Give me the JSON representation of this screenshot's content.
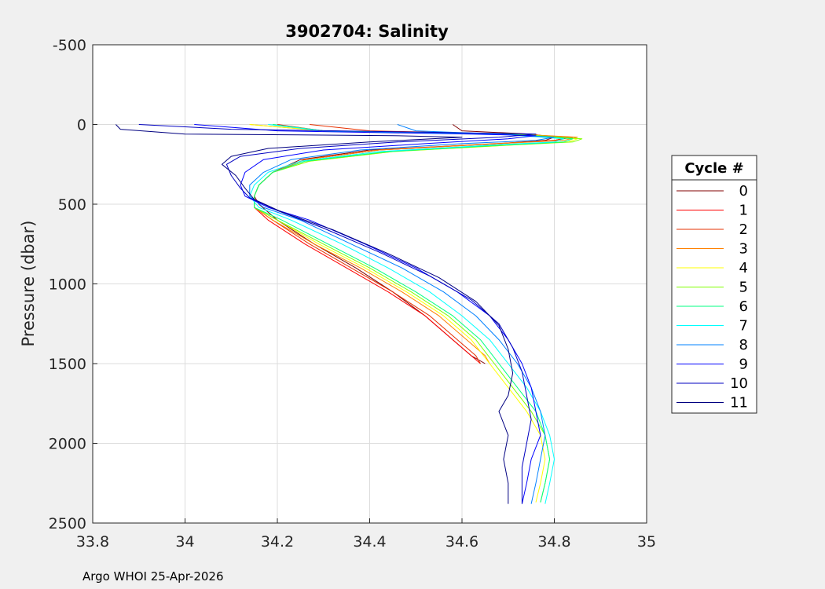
{
  "chart_data": {
    "type": "line",
    "title": "3902704:  Salinity",
    "xlabel": "",
    "ylabel": "Pressure (dbar)",
    "xlim": [
      33.8,
      35
    ],
    "ylim": [
      -500,
      2500
    ],
    "y_reversed": true,
    "grid": true,
    "xticks": [
      "33.8",
      "34",
      "34.2",
      "34.4",
      "34.6",
      "34.8",
      "35"
    ],
    "yticks": [
      "-500",
      "0",
      "500",
      "1000",
      "1500",
      "2000",
      "2500"
    ],
    "xtick_values": [
      33.8,
      34.0,
      34.2,
      34.4,
      34.6,
      34.8,
      35.0
    ],
    "ytick_values": [
      -500,
      0,
      500,
      1000,
      1500,
      2000,
      2500
    ],
    "legend": {
      "title": "Cycle #",
      "placement": "right"
    },
    "series": [
      {
        "name": "0",
        "color": "#800000",
        "points": [
          [
            34.58,
            0
          ],
          [
            34.6,
            40
          ],
          [
            34.75,
            60
          ],
          [
            34.8,
            80
          ],
          [
            34.78,
            100
          ],
          [
            34.68,
            120
          ],
          [
            34.4,
            160
          ],
          [
            34.25,
            220
          ],
          [
            34.19,
            300
          ],
          [
            34.16,
            380
          ],
          [
            34.15,
            450
          ],
          [
            34.16,
            500
          ],
          [
            34.2,
            600
          ],
          [
            34.28,
            750
          ],
          [
            34.37,
            900
          ],
          [
            34.45,
            1050
          ],
          [
            34.52,
            1200
          ],
          [
            34.58,
            1350
          ],
          [
            34.62,
            1450
          ],
          [
            34.65,
            1500
          ]
        ]
      },
      {
        "name": "1",
        "color": "#ff0000",
        "points": [
          [
            34.2,
            0
          ],
          [
            34.3,
            40
          ],
          [
            34.7,
            60
          ],
          [
            34.83,
            80
          ],
          [
            34.8,
            100
          ],
          [
            34.68,
            120
          ],
          [
            34.42,
            160
          ],
          [
            34.26,
            220
          ],
          [
            34.19,
            300
          ],
          [
            34.16,
            380
          ],
          [
            34.15,
            450
          ],
          [
            34.15,
            520
          ],
          [
            34.18,
            600
          ],
          [
            34.26,
            750
          ],
          [
            34.35,
            900
          ],
          [
            34.44,
            1050
          ],
          [
            34.52,
            1200
          ],
          [
            34.58,
            1350
          ],
          [
            34.62,
            1450
          ],
          [
            34.64,
            1500
          ]
        ]
      },
      {
        "name": "2",
        "color": "#e63000",
        "points": [
          [
            34.27,
            0
          ],
          [
            34.4,
            40
          ],
          [
            34.72,
            60
          ],
          [
            34.84,
            80
          ],
          [
            34.8,
            100
          ],
          [
            34.67,
            120
          ],
          [
            34.42,
            160
          ],
          [
            34.26,
            220
          ],
          [
            34.19,
            300
          ],
          [
            34.16,
            380
          ],
          [
            34.15,
            450
          ],
          [
            34.15,
            520
          ],
          [
            34.19,
            600
          ],
          [
            34.27,
            750
          ],
          [
            34.36,
            900
          ],
          [
            34.45,
            1050
          ],
          [
            34.53,
            1200
          ],
          [
            34.59,
            1350
          ],
          [
            34.63,
            1450
          ],
          [
            34.64,
            1500
          ]
        ]
      },
      {
        "name": "3",
        "color": "#ff8000",
        "points": [
          [
            34.14,
            0
          ],
          [
            34.3,
            40
          ],
          [
            34.72,
            60
          ],
          [
            34.85,
            80
          ],
          [
            34.82,
            100
          ],
          [
            34.68,
            120
          ],
          [
            34.42,
            160
          ],
          [
            34.26,
            220
          ],
          [
            34.19,
            300
          ],
          [
            34.16,
            380
          ],
          [
            34.15,
            450
          ],
          [
            34.15,
            520
          ],
          [
            34.19,
            600
          ],
          [
            34.28,
            750
          ],
          [
            34.38,
            900
          ],
          [
            34.47,
            1050
          ],
          [
            34.55,
            1200
          ],
          [
            34.61,
            1350
          ],
          [
            34.65,
            1450
          ],
          [
            34.66,
            1500
          ]
        ]
      },
      {
        "name": "4",
        "color": "#ffff00",
        "points": [
          [
            34.14,
            0
          ],
          [
            34.3,
            40
          ],
          [
            34.72,
            60
          ],
          [
            34.85,
            90
          ],
          [
            34.83,
            110
          ],
          [
            34.7,
            130
          ],
          [
            34.45,
            170
          ],
          [
            34.27,
            230
          ],
          [
            34.19,
            300
          ],
          [
            34.16,
            380
          ],
          [
            34.15,
            450
          ],
          [
            34.15,
            520
          ],
          [
            34.2,
            600
          ],
          [
            34.29,
            750
          ],
          [
            34.39,
            900
          ],
          [
            34.48,
            1050
          ],
          [
            34.56,
            1200
          ],
          [
            34.62,
            1350
          ],
          [
            34.66,
            1500
          ],
          [
            34.7,
            1650
          ],
          [
            34.74,
            1800
          ],
          [
            34.77,
            1950
          ],
          [
            34.78,
            2100
          ],
          [
            34.77,
            2250
          ],
          [
            34.76,
            2370
          ]
        ]
      },
      {
        "name": "5",
        "color": "#80ff00",
        "points": [
          [
            34.19,
            0
          ],
          [
            34.3,
            40
          ],
          [
            34.72,
            60
          ],
          [
            34.86,
            90
          ],
          [
            34.84,
            110
          ],
          [
            34.7,
            130
          ],
          [
            34.45,
            170
          ],
          [
            34.27,
            230
          ],
          [
            34.19,
            300
          ],
          [
            34.16,
            380
          ],
          [
            34.15,
            450
          ],
          [
            34.15,
            520
          ],
          [
            34.2,
            600
          ],
          [
            34.3,
            750
          ],
          [
            34.4,
            900
          ],
          [
            34.49,
            1050
          ],
          [
            34.57,
            1200
          ],
          [
            34.63,
            1350
          ],
          [
            34.67,
            1500
          ],
          [
            34.71,
            1650
          ],
          [
            34.75,
            1800
          ],
          [
            34.78,
            1950
          ],
          [
            34.79,
            2100
          ],
          [
            34.78,
            2250
          ],
          [
            34.77,
            2370
          ]
        ]
      },
      {
        "name": "6",
        "color": "#00ff80",
        "points": [
          [
            34.19,
            0
          ],
          [
            34.3,
            40
          ],
          [
            34.7,
            60
          ],
          [
            34.84,
            90
          ],
          [
            34.82,
            110
          ],
          [
            34.68,
            130
          ],
          [
            34.44,
            170
          ],
          [
            34.26,
            230
          ],
          [
            34.19,
            300
          ],
          [
            34.16,
            380
          ],
          [
            34.15,
            450
          ],
          [
            34.15,
            520
          ],
          [
            34.21,
            600
          ],
          [
            34.31,
            750
          ],
          [
            34.41,
            900
          ],
          [
            34.5,
            1050
          ],
          [
            34.58,
            1200
          ],
          [
            34.64,
            1350
          ],
          [
            34.68,
            1500
          ],
          [
            34.72,
            1650
          ],
          [
            34.76,
            1800
          ],
          [
            34.78,
            1950
          ],
          [
            34.79,
            2100
          ],
          [
            34.78,
            2250
          ],
          [
            34.77,
            2370
          ]
        ]
      },
      {
        "name": "7",
        "color": "#00ffff",
        "points": [
          [
            34.18,
            0
          ],
          [
            34.3,
            40
          ],
          [
            34.68,
            60
          ],
          [
            34.82,
            90
          ],
          [
            34.8,
            110
          ],
          [
            34.66,
            130
          ],
          [
            34.42,
            170
          ],
          [
            34.25,
            230
          ],
          [
            34.18,
            300
          ],
          [
            34.15,
            380
          ],
          [
            34.14,
            450
          ],
          [
            34.16,
            520
          ],
          [
            34.23,
            600
          ],
          [
            34.34,
            750
          ],
          [
            34.44,
            900
          ],
          [
            34.53,
            1050
          ],
          [
            34.6,
            1200
          ],
          [
            34.66,
            1350
          ],
          [
            34.7,
            1500
          ],
          [
            34.74,
            1650
          ],
          [
            34.77,
            1800
          ],
          [
            34.79,
            1950
          ],
          [
            34.8,
            2100
          ],
          [
            34.79,
            2250
          ],
          [
            34.78,
            2380
          ]
        ]
      },
      {
        "name": "8",
        "color": "#0080ff",
        "points": [
          [
            34.46,
            0
          ],
          [
            34.5,
            40
          ],
          [
            34.68,
            60
          ],
          [
            34.8,
            80
          ],
          [
            34.76,
            100
          ],
          [
            34.6,
            120
          ],
          [
            34.38,
            160
          ],
          [
            34.23,
            220
          ],
          [
            34.17,
            300
          ],
          [
            34.14,
            380
          ],
          [
            34.14,
            450
          ],
          [
            34.17,
            520
          ],
          [
            34.25,
            600
          ],
          [
            34.36,
            750
          ],
          [
            34.47,
            900
          ],
          [
            34.56,
            1050
          ],
          [
            34.63,
            1200
          ],
          [
            34.68,
            1350
          ],
          [
            34.72,
            1500
          ],
          [
            34.75,
            1650
          ],
          [
            34.77,
            1800
          ],
          [
            34.78,
            1950
          ],
          [
            34.77,
            2100
          ],
          [
            34.76,
            2250
          ],
          [
            34.75,
            2380
          ]
        ]
      },
      {
        "name": "9",
        "color": "#0000ff",
        "points": [
          [
            34.02,
            0
          ],
          [
            34.2,
            40
          ],
          [
            34.62,
            60
          ],
          [
            34.76,
            70
          ],
          [
            34.7,
            90
          ],
          [
            34.52,
            120
          ],
          [
            34.3,
            160
          ],
          [
            34.17,
            220
          ],
          [
            34.13,
            300
          ],
          [
            34.12,
            380
          ],
          [
            34.13,
            450
          ],
          [
            34.18,
            520
          ],
          [
            34.27,
            600
          ],
          [
            34.39,
            750
          ],
          [
            34.5,
            900
          ],
          [
            34.59,
            1050
          ],
          [
            34.66,
            1200
          ],
          [
            34.7,
            1350
          ],
          [
            34.73,
            1500
          ],
          [
            34.75,
            1650
          ],
          [
            34.76,
            1800
          ],
          [
            34.77,
            1950
          ],
          [
            34.75,
            2100
          ],
          [
            34.74,
            2250
          ],
          [
            34.73,
            2380
          ]
        ]
      },
      {
        "name": "10",
        "color": "#0000c0",
        "points": [
          [
            33.9,
            0
          ],
          [
            34.1,
            30
          ],
          [
            34.55,
            50
          ],
          [
            34.76,
            60
          ],
          [
            34.68,
            80
          ],
          [
            34.46,
            110
          ],
          [
            34.25,
            150
          ],
          [
            34.12,
            200
          ],
          [
            34.09,
            250
          ],
          [
            34.1,
            320
          ],
          [
            34.12,
            400
          ],
          [
            34.14,
            460
          ],
          [
            34.2,
            540
          ],
          [
            34.3,
            650
          ],
          [
            34.42,
            800
          ],
          [
            34.53,
            950
          ],
          [
            34.62,
            1100
          ],
          [
            34.68,
            1250
          ],
          [
            34.71,
            1400
          ],
          [
            34.73,
            1550
          ],
          [
            34.74,
            1700
          ],
          [
            34.75,
            1850
          ],
          [
            34.74,
            2000
          ],
          [
            34.73,
            2150
          ],
          [
            34.73,
            2380
          ]
        ]
      },
      {
        "name": "11",
        "color": "#000080",
        "points": [
          [
            33.85,
            0
          ],
          [
            33.86,
            30
          ],
          [
            34.0,
            60
          ],
          [
            34.45,
            70
          ],
          [
            34.6,
            80
          ],
          [
            34.4,
            110
          ],
          [
            34.18,
            150
          ],
          [
            34.1,
            200
          ],
          [
            34.08,
            250
          ],
          [
            34.11,
            320
          ],
          [
            34.13,
            400
          ],
          [
            34.15,
            470
          ],
          [
            34.21,
            550
          ],
          [
            34.32,
            660
          ],
          [
            34.44,
            810
          ],
          [
            34.55,
            960
          ],
          [
            34.63,
            1110
          ],
          [
            34.68,
            1260
          ],
          [
            34.7,
            1410
          ],
          [
            34.71,
            1560
          ],
          [
            34.7,
            1700
          ],
          [
            34.68,
            1800
          ],
          [
            34.7,
            1950
          ],
          [
            34.69,
            2100
          ],
          [
            34.7,
            2250
          ],
          [
            34.7,
            2380
          ]
        ]
      }
    ]
  },
  "footer": "Argo WHOI 25-Apr-2026"
}
